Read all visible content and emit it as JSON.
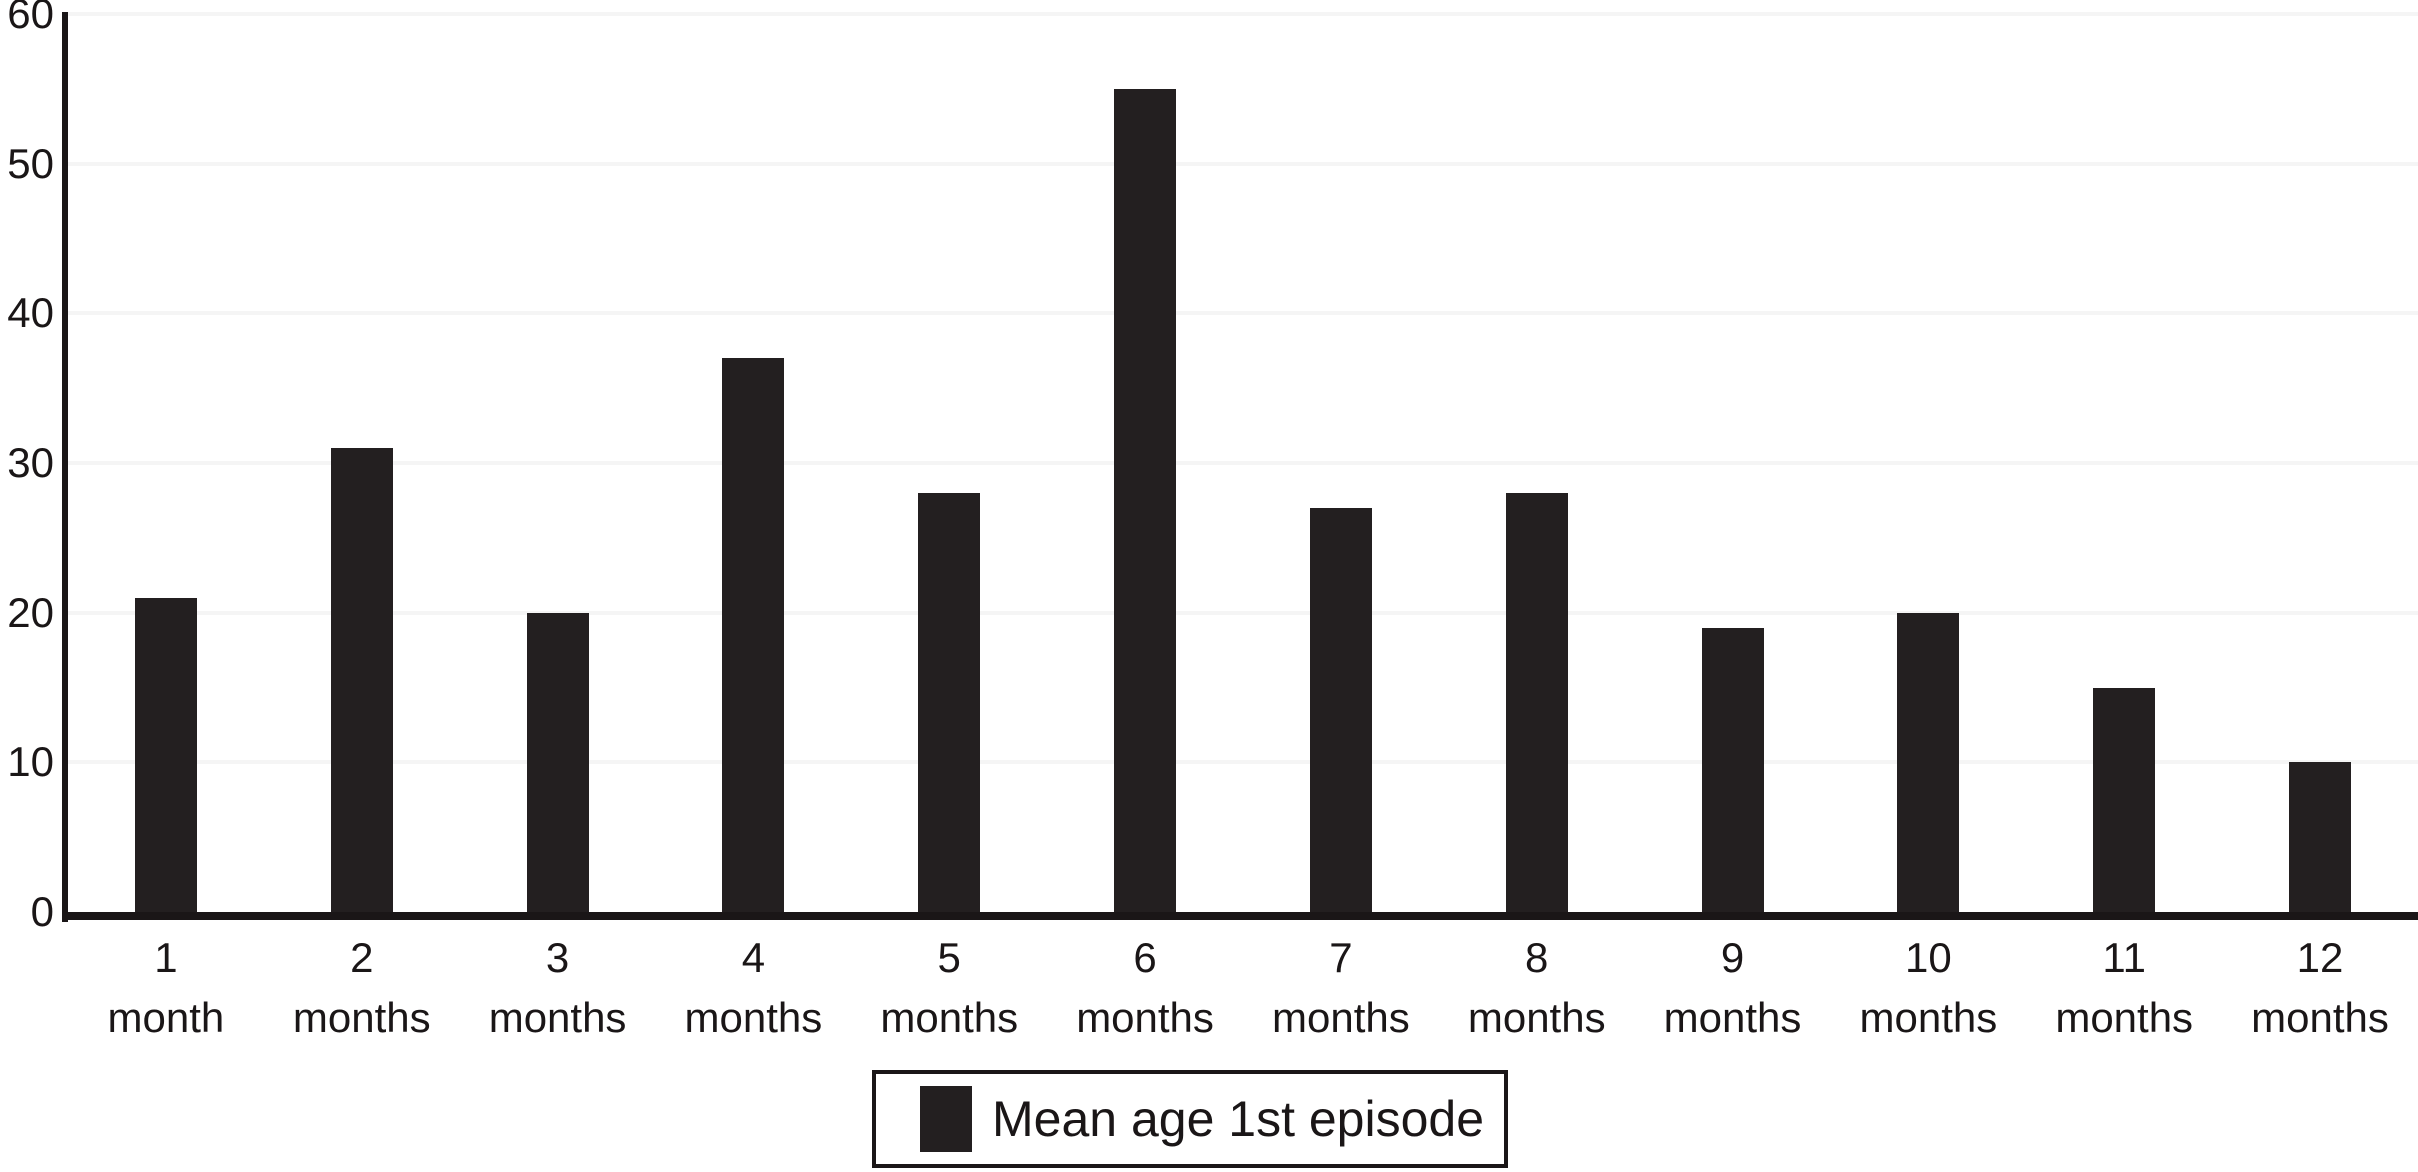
{
  "chart_data": {
    "type": "bar",
    "title": "",
    "categories": [
      "1 month",
      "2 months",
      "3 months",
      "4 months",
      "5 months",
      "6 months",
      "7 months",
      "8 months",
      "9 months",
      "10 months",
      "11 months",
      "12 months"
    ],
    "category_labels": [
      {
        "line1": "1",
        "line2": "month"
      },
      {
        "line1": "2",
        "line2": "months"
      },
      {
        "line1": "3",
        "line2": "months"
      },
      {
        "line1": "4",
        "line2": "months"
      },
      {
        "line1": "5",
        "line2": "months"
      },
      {
        "line1": "6",
        "line2": "months"
      },
      {
        "line1": "7",
        "line2": "months"
      },
      {
        "line1": "8",
        "line2": "months"
      },
      {
        "line1": "9",
        "line2": "months"
      },
      {
        "line1": "10",
        "line2": "months"
      },
      {
        "line1": "11",
        "line2": "months"
      },
      {
        "line1": "12",
        "line2": "months"
      }
    ],
    "series": [
      {
        "name": "Mean age 1st episode",
        "values": [
          21,
          31,
          20,
          37,
          28,
          55,
          27,
          28,
          19,
          20,
          15,
          10
        ]
      }
    ],
    "values": [
      21,
      31,
      20,
      37,
      28,
      55,
      27,
      28,
      19,
      20,
      15,
      10
    ],
    "xlabel": "",
    "ylabel": "",
    "ylim": [
      0,
      60
    ],
    "y_ticks": [
      0,
      10,
      20,
      30,
      40,
      50,
      60
    ],
    "grid": "horizontal-faint",
    "legend_position": "bottom-center",
    "legend": {
      "label": "Mean age 1st episode"
    },
    "colors": {
      "bar": "#231f20",
      "gridline": "#f5f5f5",
      "axis": "#1a1617",
      "background": "#ffffff",
      "text": "#1a1617"
    }
  }
}
